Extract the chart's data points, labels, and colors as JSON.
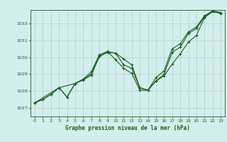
{
  "background_color": "#d4eeed",
  "grid_color": "#b0d0cc",
  "line_color": "#1a5c1a",
  "marker_color": "#1a5c1a",
  "title": "Graphe pression niveau de la mer (hPa)",
  "xlim": [
    -0.5,
    23.5
  ],
  "ylim": [
    1026.5,
    1032.8
  ],
  "yticks": [
    1027,
    1028,
    1029,
    1030,
    1031,
    1032
  ],
  "xticks": [
    0,
    1,
    2,
    3,
    4,
    5,
    6,
    7,
    8,
    9,
    10,
    11,
    12,
    13,
    14,
    15,
    16,
    17,
    18,
    19,
    20,
    21,
    22,
    23
  ],
  "series1_x": [
    0,
    1,
    2,
    3,
    4,
    5,
    6,
    7,
    8,
    9,
    10,
    11,
    12,
    13,
    14,
    15,
    16,
    17,
    18,
    19,
    20,
    21,
    22,
    23
  ],
  "series1_y": [
    1027.3,
    1027.5,
    1027.8,
    1028.2,
    1027.65,
    1028.45,
    1028.7,
    1029.0,
    1030.05,
    1030.3,
    1030.25,
    1029.9,
    1029.55,
    1028.2,
    1028.05,
    1028.6,
    1029.0,
    1030.3,
    1030.6,
    1031.4,
    1031.7,
    1032.4,
    1032.7,
    1032.6
  ],
  "series2_x": [
    0,
    1,
    2,
    3,
    4,
    5,
    6,
    7,
    8,
    9,
    10,
    11,
    12,
    13,
    14,
    15,
    16,
    17,
    18,
    19,
    20,
    21,
    22,
    23
  ],
  "series2_y": [
    1027.3,
    1027.5,
    1027.8,
    1028.2,
    1027.65,
    1028.45,
    1028.7,
    1029.15,
    1030.15,
    1030.35,
    1029.85,
    1029.35,
    1029.05,
    1028.05,
    1028.05,
    1028.8,
    1029.2,
    1030.5,
    1030.8,
    1031.5,
    1031.8,
    1032.45,
    1032.75,
    1032.65
  ],
  "series3_x": [
    0,
    3,
    5,
    6,
    7,
    8,
    9,
    10,
    11,
    12,
    13,
    14,
    15,
    16,
    17,
    18,
    19,
    20,
    21,
    22,
    23
  ],
  "series3_y": [
    1027.3,
    1028.2,
    1028.45,
    1028.65,
    1028.95,
    1030.05,
    1030.3,
    1030.25,
    1029.55,
    1029.35,
    1028.2,
    1028.05,
    1028.6,
    1028.9,
    1029.6,
    1030.2,
    1030.9,
    1031.3,
    1032.35,
    1032.7,
    1032.6
  ]
}
